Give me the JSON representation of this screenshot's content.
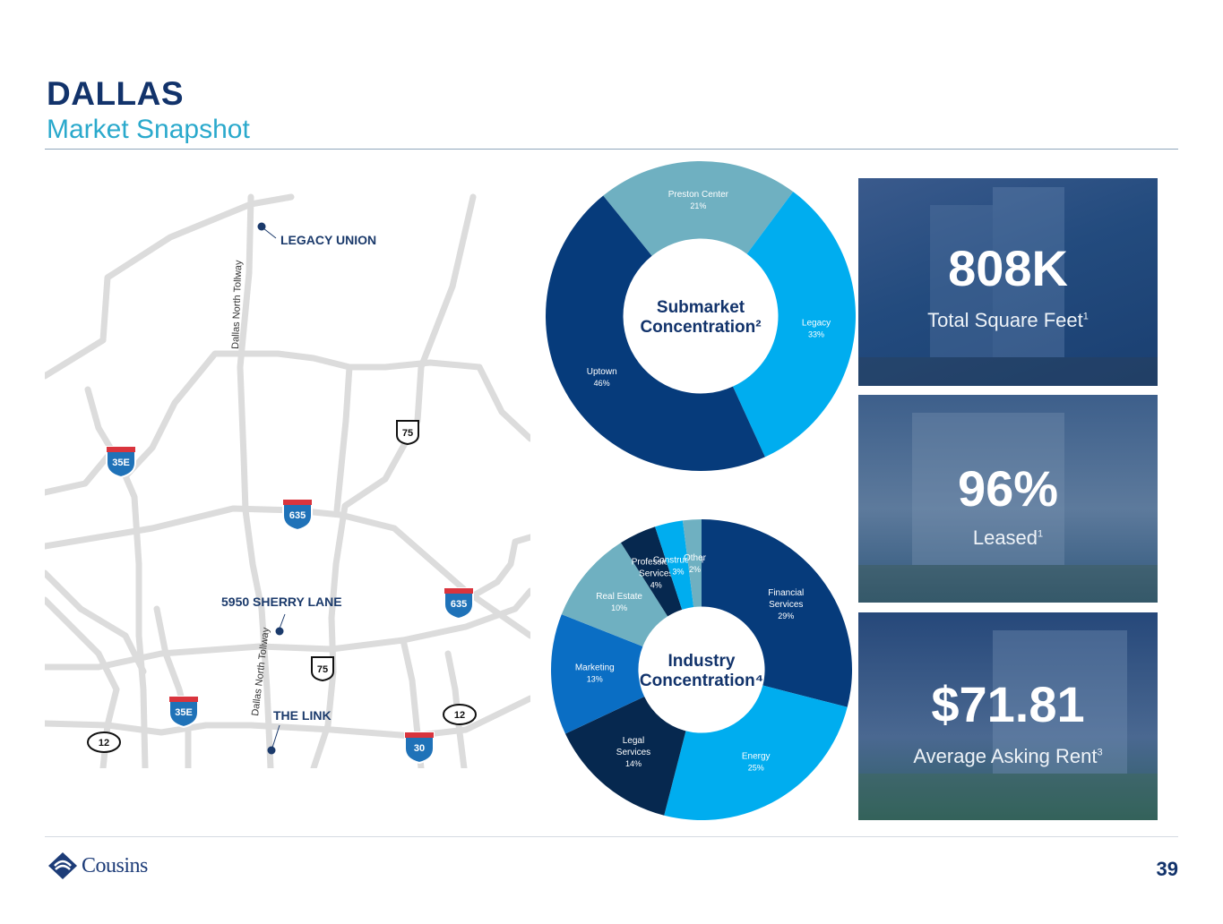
{
  "header": {
    "title": "DALLAS",
    "subtitle": "Market Snapshot"
  },
  "map": {
    "roads": [
      {
        "label": "Dallas North Tollway"
      },
      {
        "label": "Dallas North Tollway"
      }
    ],
    "shields": [
      "35E",
      "635",
      "75",
      "635",
      "75",
      "35E",
      "12",
      "12",
      "30"
    ],
    "properties": [
      "LEGACY UNION",
      "5950 SHERRY LANE",
      "THE LINK"
    ]
  },
  "chart_data": [
    {
      "type": "pie",
      "title": "Submarket Concentration²",
      "title_lines": [
        "Submarket",
        "Concentration²"
      ],
      "categories": [
        "Preston Center",
        "Legacy",
        "Uptown"
      ],
      "values": [
        21,
        33,
        46
      ],
      "value_labels": [
        "21%",
        "33%",
        "46%"
      ],
      "colors": [
        "#6fb0c1",
        "#00adef",
        "#063b7b"
      ]
    },
    {
      "type": "pie",
      "title": "Industry Concentration⁴",
      "title_lines": [
        "Industry",
        "Concentration⁴"
      ],
      "categories": [
        "Financial Services",
        "Energy",
        "Legal Services",
        "Marketing",
        "Real Estate",
        "Professional Services",
        "Construction",
        "Other"
      ],
      "category_lines": [
        [
          "Financial",
          "Services"
        ],
        [
          "Energy"
        ],
        [
          "Legal",
          "Services"
        ],
        [
          "Marketing"
        ],
        [
          "Real Estate"
        ],
        [
          "Professional",
          "Services"
        ],
        [
          "Construction"
        ],
        [
          "Other"
        ]
      ],
      "values": [
        29,
        25,
        14,
        13,
        10,
        4,
        3,
        2
      ],
      "value_labels": [
        "29%",
        "25%",
        "14%",
        "13%",
        "10%",
        "4%",
        "3%",
        "2%"
      ],
      "colors": [
        "#063b7b",
        "#00adef",
        "#06284f",
        "#0a6ec4",
        "#6fb0c1",
        "#06284f",
        "#00adef",
        "#6fb0c1"
      ]
    }
  ],
  "stats": [
    {
      "value": "808K",
      "label": "Total Square Feet",
      "note": "1"
    },
    {
      "value": "96%",
      "label": "Leased",
      "note": "1"
    },
    {
      "value": "$71.81",
      "label": "Average Asking Rent",
      "note": "3"
    }
  ],
  "footer": {
    "brand": "Cousins",
    "page": "39"
  },
  "colors": {
    "navy": "#12336b",
    "teal": "#2aa9cc",
    "road": "#dcdcdc"
  }
}
